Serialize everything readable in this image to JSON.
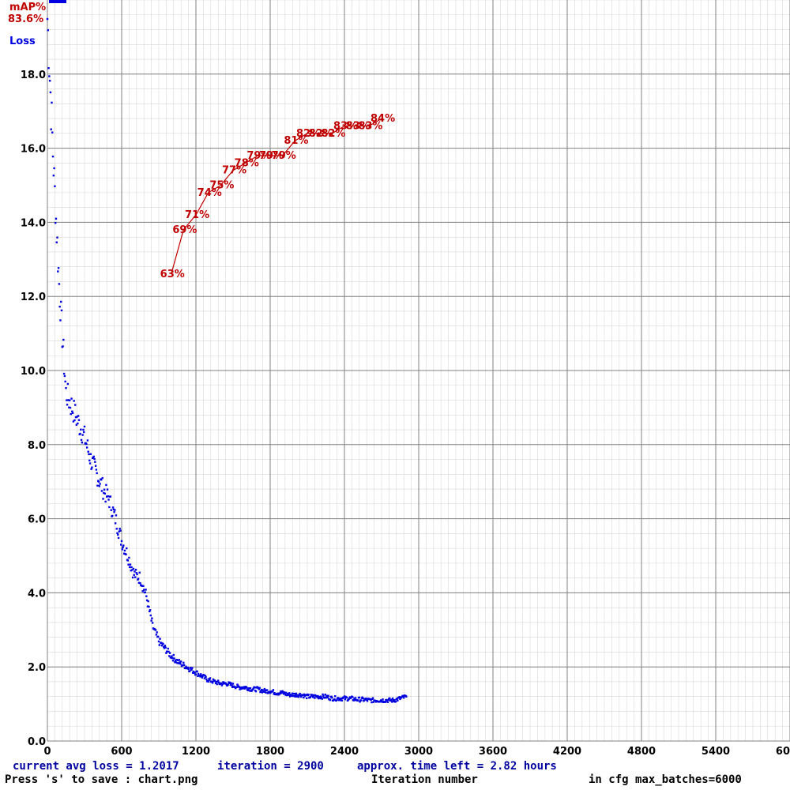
{
  "legend": {
    "map_label": "mAP%",
    "map_value": "83.6%",
    "loss_label": "Loss",
    "map_color": "#c00000",
    "loss_color": "#0000e0"
  },
  "status": {
    "line1_loss": "current avg loss = 1.2017",
    "line1_iter": "iteration = 2900",
    "line1_time": "approx. time left = 2.82 hours",
    "line2_save": "Press 's' to save : chart.png",
    "line2_xlabel": "Iteration number",
    "line2_maxbatch": "in cfg max_batches=6000"
  },
  "chart_data": {
    "type": "scatter",
    "xlabel": "Iteration number",
    "ylabel": "Loss",
    "xlim": [
      0,
      6000
    ],
    "ylim": [
      0,
      20
    ],
    "x_ticks": [
      "0",
      "600",
      "1200",
      "1800",
      "2400",
      "3000",
      "3600",
      "4200",
      "4800",
      "5400",
      "6000"
    ],
    "y_ticks": [
      "0.0",
      "2.0",
      "4.0",
      "6.0",
      "8.0",
      "10.0",
      "12.0",
      "14.0",
      "16.0",
      "18.0"
    ],
    "grid": true,
    "series": [
      {
        "name": "Loss",
        "color": "#0000e0",
        "x": [
          0,
          50,
          100,
          150,
          200,
          250,
          300,
          350,
          400,
          450,
          500,
          550,
          600,
          650,
          700,
          750,
          800,
          850,
          900,
          950,
          1000,
          1050,
          1100,
          1150,
          1200,
          1250,
          1300,
          1350,
          1400,
          1450,
          1500,
          1550,
          1600,
          1650,
          1700,
          1750,
          1800,
          1850,
          1900,
          1950,
          2000,
          2050,
          2100,
          2150,
          2200,
          2250,
          2300,
          2350,
          2400,
          2450,
          2500,
          2550,
          2600,
          2650,
          2700,
          2750,
          2800,
          2850,
          2900
        ],
        "values": [
          19.5,
          15.5,
          12.0,
          9.4,
          9.0,
          8.6,
          8.2,
          7.6,
          7.2,
          6.8,
          6.5,
          6.0,
          5.4,
          5.0,
          4.5,
          4.4,
          3.9,
          3.1,
          2.7,
          2.5,
          2.3,
          2.15,
          2.05,
          1.95,
          1.85,
          1.75,
          1.65,
          1.6,
          1.55,
          1.55,
          1.5,
          1.45,
          1.45,
          1.4,
          1.4,
          1.35,
          1.35,
          1.3,
          1.3,
          1.25,
          1.25,
          1.25,
          1.2,
          1.2,
          1.2,
          1.2,
          1.15,
          1.15,
          1.15,
          1.15,
          1.12,
          1.12,
          1.1,
          1.1,
          1.1,
          1.1,
          1.1,
          1.15,
          1.2
        ]
      },
      {
        "name": "mAP%",
        "color": "#c00000",
        "x": [
          1000,
          1100,
          1200,
          1300,
          1400,
          1500,
          1600,
          1700,
          1800,
          1900,
          2000,
          2100,
          2200,
          2300,
          2400,
          2500,
          2600,
          2700
        ],
        "values": [
          63,
          69,
          71,
          74,
          75,
          77,
          78,
          79,
          79,
          79,
          81,
          82,
          82,
          82,
          83,
          83,
          83,
          84
        ],
        "labels": [
          "63%",
          "69%",
          "71%",
          "74%",
          "75%",
          "77%",
          "78%",
          "79%",
          "79%",
          "79%",
          "81%",
          "82%",
          "82%",
          "82%",
          "83%",
          "83%",
          "83%",
          "84%"
        ]
      }
    ]
  }
}
